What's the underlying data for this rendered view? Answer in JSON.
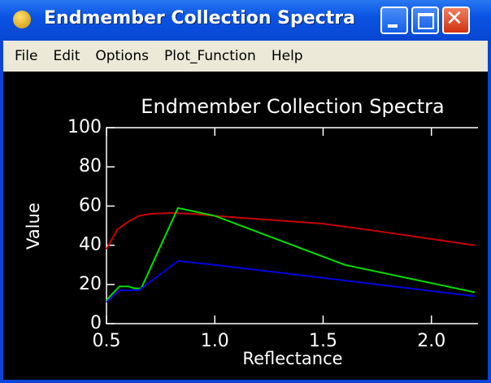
{
  "window": {
    "title": "Endmember Collection Spectra"
  },
  "menu": [
    "File",
    "Edit",
    "Options",
    "Plot_Function",
    "Help"
  ],
  "chart_data": {
    "type": "line",
    "title": "Endmember Collection Spectra",
    "x_label": "Reflectance",
    "y_label": "Value",
    "xlim": [
      0.5,
      2.2
    ],
    "ylim": [
      0,
      100
    ],
    "xticks": [
      0.5,
      {
        "value": 1,
        "label": "1.0"
      },
      1.5,
      {
        "value": 2,
        "label": "2.0"
      }
    ],
    "yticks": [
      0,
      20,
      40,
      60,
      80,
      100
    ],
    "series": [
      {
        "color": "#c80000",
        "x": [
          0.5,
          0.55,
          0.6,
          0.65,
          0.7,
          0.8,
          0.9,
          1.0,
          1.5,
          1.7,
          2.2
        ],
        "values": [
          38,
          48,
          52,
          55,
          56,
          56.5,
          56,
          55,
          51,
          48,
          40
        ]
      },
      {
        "color": "#00e000",
        "x": [
          0.5,
          0.56,
          0.6,
          0.63,
          0.66,
          0.83,
          1.0,
          1.6,
          2.2
        ],
        "values": [
          12,
          19,
          19,
          18,
          18,
          59,
          55,
          30,
          16
        ]
      },
      {
        "color": "#0000e0",
        "x": [
          0.5,
          0.56,
          0.65,
          0.83,
          1.0,
          2.2
        ],
        "values": [
          11,
          17,
          17,
          32,
          30,
          14
        ]
      }
    ]
  }
}
